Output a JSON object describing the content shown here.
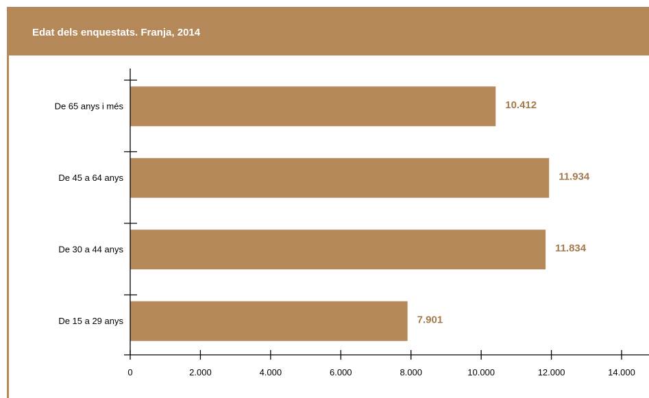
{
  "colors": {
    "accent": "#b5885a",
    "value_text": "#a47a4d",
    "axis": "#000000"
  },
  "chart_data": {
    "type": "bar",
    "orientation": "horizontal",
    "title": "Edat dels enquestats. Franja, 2014",
    "categories": [
      "De 65 anys i més",
      "De 45 a 64 anys",
      "De 30 a 44 anys",
      "De 15 a 29 anys"
    ],
    "values": [
      10412,
      11934,
      11834,
      7901
    ],
    "value_labels": [
      "10.412",
      "11.934",
      "11.834",
      "7.901"
    ],
    "xlim": [
      0,
      14000
    ],
    "xticks": [
      0,
      2000,
      4000,
      6000,
      8000,
      10000,
      12000,
      14000
    ],
    "xtick_labels": [
      "0",
      "2.000",
      "4.000",
      "6.000",
      "8.000",
      "10.000",
      "12.000",
      "14.000"
    ],
    "grid": false,
    "legend": "none"
  }
}
